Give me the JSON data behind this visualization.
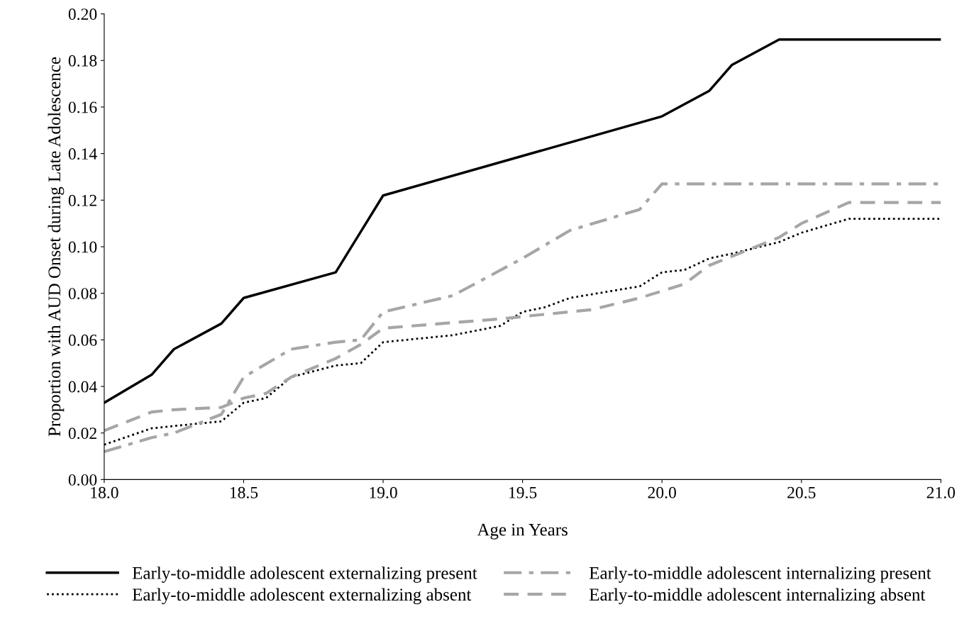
{
  "chart_data": {
    "type": "line",
    "xlabel": "Age in Years",
    "ylabel": "Proportion with AUD Onset during Late Adolescence",
    "xlim": [
      18.0,
      21.0
    ],
    "xticks": [
      {
        "value": 18.0,
        "label": "18.0"
      },
      {
        "value": 18.5,
        "label": "18.5"
      },
      {
        "value": 19.0,
        "label": "19.0"
      },
      {
        "value": 19.5,
        "label": "19.5"
      },
      {
        "value": 20.0,
        "label": "20.0"
      },
      {
        "value": 20.5,
        "label": "20.5"
      },
      {
        "value": 21.0,
        "label": "21.0"
      }
    ],
    "ylim": [
      0,
      0.2
    ],
    "yticks": [
      {
        "value": 0,
        "label": "0.00"
      },
      {
        "value": 0.02,
        "label": "0.02"
      },
      {
        "value": 0.04,
        "label": "0.04"
      },
      {
        "value": 0.06,
        "label": "0.06"
      },
      {
        "value": 0.08,
        "label": "0.08"
      },
      {
        "value": 0.1,
        "label": "0.10"
      },
      {
        "value": 0.12,
        "label": "0.12"
      },
      {
        "value": 0.14,
        "label": "0.14"
      },
      {
        "value": 0.16,
        "label": "0.16"
      },
      {
        "value": 0.18,
        "label": "0.18"
      },
      {
        "value": 0.2,
        "label": "0.20"
      }
    ],
    "grid": false,
    "legend": "bottom",
    "marker": "none",
    "series": [
      {
        "name": "Early-to-middle adolescent externalizing present",
        "color": "#000000",
        "line_style": "solid",
        "x": [
          18.0,
          18.17,
          18.25,
          18.42,
          18.5,
          18.83,
          19.0,
          20.0,
          20.17,
          20.25,
          20.42,
          21.0
        ],
        "values": [
          0.033,
          0.045,
          0.056,
          0.067,
          0.078,
          0.089,
          0.122,
          0.156,
          0.167,
          0.178,
          0.189,
          0.189
        ]
      },
      {
        "name": "Early-to-middle adolescent externalizing absent",
        "color": "#000000",
        "line_style": "dotted",
        "x": [
          18.0,
          18.17,
          18.25,
          18.42,
          18.5,
          18.58,
          18.67,
          18.83,
          18.92,
          19.0,
          19.25,
          19.42,
          19.5,
          19.58,
          19.67,
          19.92,
          20.0,
          20.08,
          20.17,
          20.25,
          20.42,
          20.5,
          20.67,
          21.0
        ],
        "values": [
          0.015,
          0.022,
          0.023,
          0.025,
          0.033,
          0.035,
          0.044,
          0.049,
          0.05,
          0.059,
          0.062,
          0.066,
          0.072,
          0.074,
          0.078,
          0.083,
          0.089,
          0.09,
          0.095,
          0.097,
          0.102,
          0.106,
          0.112,
          0.112
        ]
      },
      {
        "name": "Early-to-middle adolescent internalizing present",
        "color": "#a6a6a6",
        "line_style": "dashdot",
        "x": [
          18.0,
          18.17,
          18.25,
          18.42,
          18.5,
          18.67,
          18.83,
          18.92,
          19.0,
          19.25,
          19.5,
          19.67,
          19.92,
          20.0,
          21.0
        ],
        "values": [
          0.012,
          0.018,
          0.02,
          0.028,
          0.044,
          0.056,
          0.059,
          0.06,
          0.072,
          0.079,
          0.095,
          0.107,
          0.116,
          0.127,
          0.127
        ]
      },
      {
        "name": "Early-to-middle adolescent internalizing absent",
        "color": "#a6a6a6",
        "line_style": "dashed",
        "x": [
          18.0,
          18.17,
          18.25,
          18.42,
          18.5,
          18.58,
          18.67,
          18.83,
          18.92,
          19.0,
          19.42,
          19.5,
          19.75,
          19.92,
          20.0,
          20.08,
          20.17,
          20.42,
          20.5,
          20.67,
          21.0
        ],
        "values": [
          0.021,
          0.029,
          0.03,
          0.031,
          0.035,
          0.037,
          0.044,
          0.052,
          0.058,
          0.065,
          0.069,
          0.07,
          0.073,
          0.078,
          0.081,
          0.084,
          0.092,
          0.104,
          0.11,
          0.119,
          0.119
        ]
      }
    ]
  }
}
